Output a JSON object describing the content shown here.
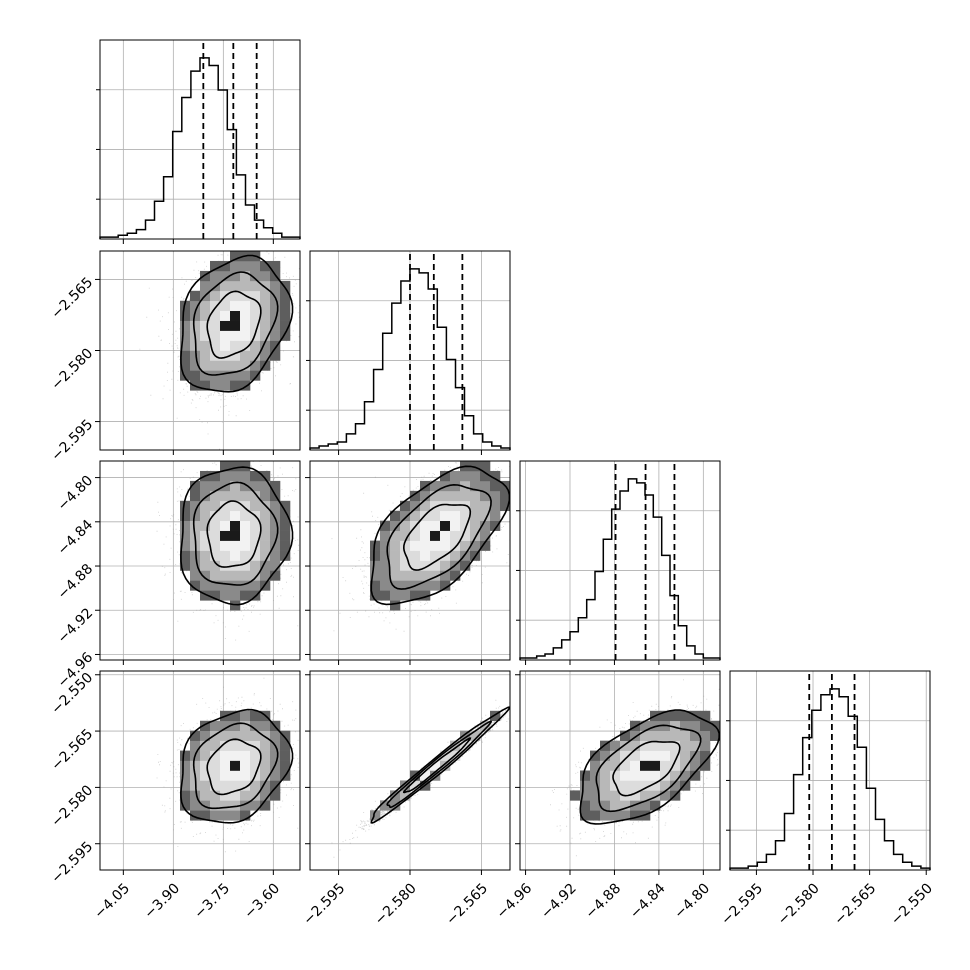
{
  "chart_data": {
    "type": "corner",
    "title": "",
    "grid": true,
    "quantile_lines": "dashed",
    "parameters": [
      {
        "range": [
          -4.12,
          -3.52
        ],
        "ticks": [
          -4.05,
          -3.9,
          -3.75,
          -3.6
        ],
        "tick_labels": [
          "−4.05",
          "−3.90",
          "−3.75",
          "−3.60"
        ],
        "quantiles": [
          -3.81,
          -3.72,
          -3.65
        ]
      },
      {
        "range": [
          -2.601,
          -2.559
        ],
        "ticks": [
          -2.595,
          -2.58,
          -2.565
        ],
        "tick_labels": [
          "−2.595",
          "−2.580",
          "−2.565"
        ],
        "quantiles": [
          -2.58,
          -2.575,
          -2.569
        ]
      },
      {
        "range": [
          -4.965,
          -4.785
        ],
        "ticks": [
          -4.96,
          -4.92,
          -4.88,
          -4.84,
          -4.8
        ],
        "tick_labels": [
          "−4.96",
          "−4.92",
          "−4.88",
          "−4.84",
          "−4.80"
        ],
        "quantiles": [
          -4.879,
          -4.852,
          -4.826
        ]
      },
      {
        "range": [
          -2.602,
          -2.549
        ],
        "ticks": [
          -2.595,
          -2.58,
          -2.565,
          -2.55
        ],
        "tick_labels": [
          "−2.595",
          "−2.580",
          "−2.565",
          "−2.550"
        ],
        "quantiles": [
          -2.581,
          -2.575,
          -2.569
        ]
      }
    ],
    "panels_2d": [
      {
        "x": 0,
        "y": 1,
        "mean": [
          -3.72,
          -2.5745
        ],
        "sd": [
          0.075,
          0.0065
        ],
        "rho": 0.25
      },
      {
        "x": 0,
        "y": 2,
        "mean": [
          -3.72,
          -4.852
        ],
        "sd": [
          0.075,
          0.028
        ],
        "rho": 0.04
      },
      {
        "x": 1,
        "y": 2,
        "mean": [
          -2.5745,
          -4.852
        ],
        "sd": [
          0.0065,
          0.028
        ],
        "rho": 0.55
      },
      {
        "x": 0,
        "y": 3,
        "mean": [
          -3.72,
          -2.5745
        ],
        "sd": [
          0.075,
          0.0068
        ],
        "rho": 0.22
      },
      {
        "x": 1,
        "y": 3,
        "mean": [
          -2.5745,
          -2.5745
        ],
        "sd": [
          0.0065,
          0.0068
        ],
        "rho": 0.985
      },
      {
        "x": 2,
        "y": 3,
        "mean": [
          -4.852,
          -2.5745
        ],
        "sd": [
          0.028,
          0.0068
        ],
        "rho": 0.55
      }
    ],
    "histograms": [
      {
        "param": 0,
        "counts": [
          1,
          1,
          2,
          3,
          5,
          10,
          20,
          33,
          57,
          75,
          89,
          96,
          92,
          79,
          58,
          34,
          18,
          10,
          6,
          3,
          1,
          1
        ]
      },
      {
        "param": 1,
        "counts": [
          1,
          2,
          3,
          4,
          8,
          13,
          24,
          40,
          58,
          73,
          84,
          90,
          88,
          80,
          61,
          45,
          31,
          17,
          8,
          4,
          2,
          1
        ]
      },
      {
        "param": 2,
        "counts": [
          1,
          1,
          2,
          3,
          6,
          10,
          14,
          21,
          30,
          44,
          60,
          75,
          84,
          90,
          88,
          82,
          71,
          52,
          32,
          17,
          7,
          3,
          1,
          1
        ]
      },
      {
        "param": 3,
        "counts": [
          1,
          1,
          2,
          4,
          8,
          15,
          29,
          49,
          68,
          82,
          90,
          93,
          89,
          79,
          63,
          42,
          26,
          15,
          8,
          4,
          2,
          1
        ]
      }
    ]
  }
}
